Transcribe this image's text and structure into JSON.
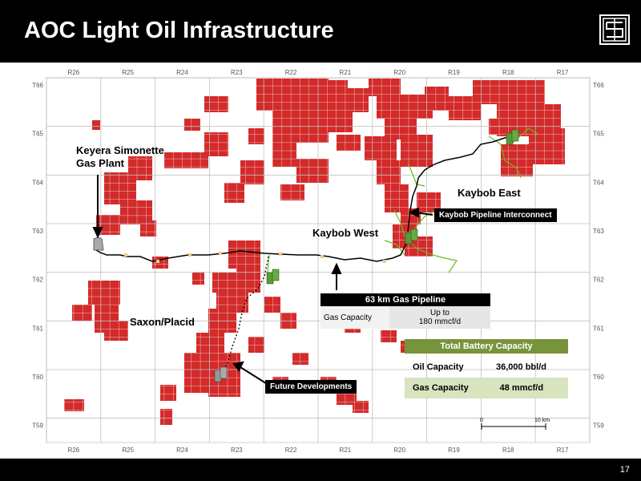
{
  "header": {
    "title": "AOC Light Oil Infrastructure"
  },
  "footer": {
    "page_number": "17"
  },
  "map": {
    "ranges_top": [
      "R26",
      "R25",
      "R24",
      "R23",
      "R22",
      "R21",
      "R20",
      "R19",
      "R18",
      "R17"
    ],
    "ranges_bottom": [
      "R26",
      "R25",
      "R24",
      "R23",
      "R22",
      "R21",
      "R20",
      "R19",
      "R18",
      "R17"
    ],
    "townships_left": [
      "T66",
      "T65",
      "T64",
      "T63",
      "T62",
      "T61",
      "T60",
      "T59"
    ],
    "townships_right": [
      "T66",
      "T65",
      "T64",
      "T63",
      "T62",
      "T61",
      "T60",
      "T59"
    ],
    "labels": {
      "gas_plant": [
        "Keyera Simonette",
        "Gas Plant"
      ],
      "kaybob_east": "Kaybob East",
      "kaybob_west": "Kaybob West",
      "saxon_placid": "Saxon/Placid",
      "interconnect": "Kaybob Pipeline Interconnect",
      "future": "Future Developments"
    },
    "pipeline_box": {
      "title": "63 km Gas Pipeline",
      "label": "Gas Capacity",
      "value_line1": "Up to",
      "value_line2": "180 mmcf/d"
    },
    "battery_box": {
      "title": "Total Battery Capacity",
      "rows": [
        {
          "label": "Oil Capacity",
          "value": "36,000 bbl/d"
        },
        {
          "label": "Gas Capacity",
          "value": "48 mmcf/d"
        }
      ]
    },
    "scale": {
      "start": "0",
      "end": "10 km"
    },
    "colors": {
      "land": "#d32a2a",
      "grid": "#cfcfcf",
      "pipeline": "#000000",
      "green_lines": "#66bb22",
      "header": "#000000",
      "battery": "#77933c"
    }
  }
}
